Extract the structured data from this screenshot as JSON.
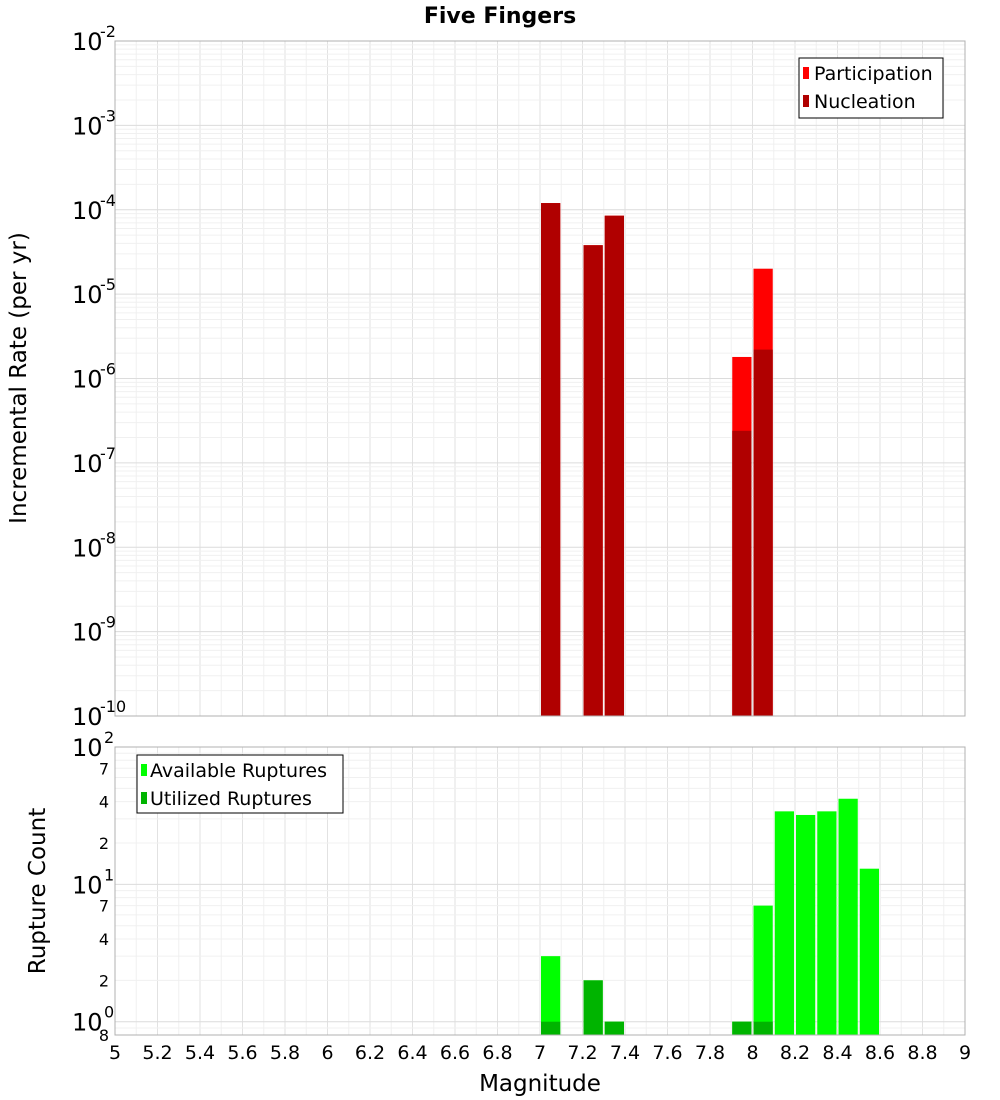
{
  "chart_data": [
    {
      "type": "bar",
      "title": "Five Fingers",
      "ylabel": "Incremental Rate (per yr)",
      "yscale": "log",
      "ylim": [
        1e-10,
        0.01
      ],
      "xlim": [
        5,
        9
      ],
      "grid": true,
      "legend_position": "top-right",
      "y_ticks": [
        {
          "base": "10",
          "exp": "-10"
        },
        {
          "base": "10",
          "exp": "-9"
        },
        {
          "base": "10",
          "exp": "-8"
        },
        {
          "base": "10",
          "exp": "-7"
        },
        {
          "base": "10",
          "exp": "-6"
        },
        {
          "base": "10",
          "exp": "-5"
        },
        {
          "base": "10",
          "exp": "-4"
        },
        {
          "base": "10",
          "exp": "-3"
        },
        {
          "base": "10",
          "exp": "-2"
        }
      ],
      "series": [
        {
          "name": "Participation",
          "color": "#ff0000",
          "x": [
            7.05,
            7.25,
            7.35,
            7.95,
            8.05
          ],
          "values": [
            0.00012,
            3.8e-05,
            8.5e-05,
            1.8e-06,
            2e-05
          ]
        },
        {
          "name": "Nucleation",
          "color": "#b00000",
          "x": [
            7.05,
            7.25,
            7.35,
            7.95,
            8.05
          ],
          "values": [
            0.00012,
            3.8e-05,
            8.5e-05,
            2.4e-07,
            2.2e-06
          ]
        }
      ]
    },
    {
      "type": "bar",
      "xlabel": "Magnitude",
      "ylabel": "Rupture Count",
      "yscale": "log",
      "ylim": [
        0.8,
        100
      ],
      "xlim": [
        5,
        9
      ],
      "grid": true,
      "legend_position": "top-left",
      "x_ticks": [
        "5",
        "5.2",
        "5.4",
        "5.6",
        "5.8",
        "6",
        "6.2",
        "6.4",
        "6.6",
        "6.8",
        "7",
        "7.2",
        "7.4",
        "7.6",
        "7.8",
        "8",
        "8.2",
        "8.4",
        "8.6",
        "8.8",
        "9"
      ],
      "y_major_ticks": [
        {
          "base": "10",
          "exp": "0",
          "value": 1
        },
        {
          "base": "10",
          "exp": "1",
          "value": 10
        },
        {
          "base": "10",
          "exp": "2",
          "value": 100
        }
      ],
      "y_minor_ticks": [
        {
          "label": "8",
          "value": 0.8
        },
        {
          "label": "2",
          "value": 2
        },
        {
          "label": "4",
          "value": 4
        },
        {
          "label": "7",
          "value": 7
        },
        {
          "label": "2",
          "value": 20
        },
        {
          "label": "4",
          "value": 40
        },
        {
          "label": "7",
          "value": 70
        }
      ],
      "series": [
        {
          "name": "Available Ruptures",
          "color": "#00ff00",
          "x": [
            7.05,
            7.25,
            7.35,
            7.95,
            8.05,
            8.15,
            8.25,
            8.35,
            8.45,
            8.55
          ],
          "values": [
            3,
            2,
            1,
            1,
            7,
            34,
            32,
            34,
            42,
            13
          ]
        },
        {
          "name": "Utilized Ruptures",
          "color": "#00b400",
          "x": [
            7.05,
            7.25,
            7.35,
            7.95,
            8.05
          ],
          "values": [
            1,
            2,
            1,
            1,
            1
          ]
        }
      ]
    }
  ]
}
